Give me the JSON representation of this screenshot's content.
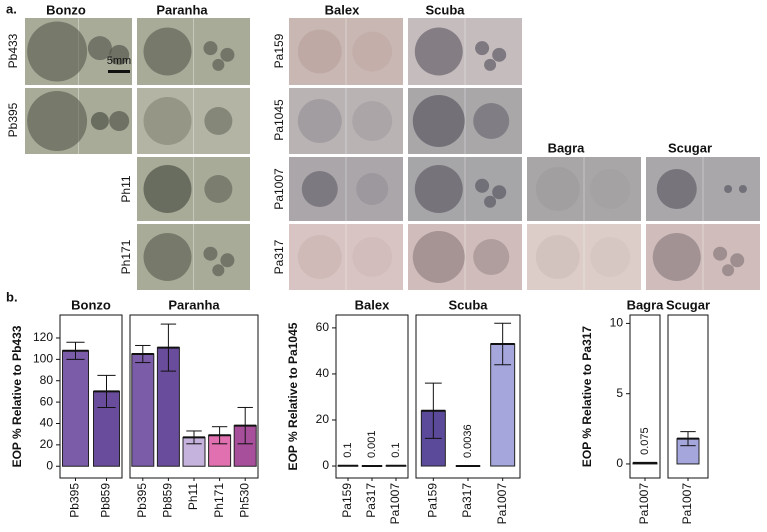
{
  "panel_a": {
    "label": "a.",
    "scale_bar": "5mm",
    "column_titles": [
      "Bonzo",
      "Paranha",
      "Balex",
      "Scuba",
      "Bagra",
      "Scugar"
    ],
    "row_labels": [
      "Pb433",
      "Pb395",
      "Ph11",
      "Ph171",
      "Pa159",
      "Pa1045",
      "Pa1007",
      "Pa317"
    ]
  },
  "panel_b_label": "b.",
  "chart_data": [
    {
      "type": "bar",
      "title": "Bonzo",
      "y_label": "EOP % Relative to Pb433",
      "categories": [
        "Pb395",
        "Pb859"
      ],
      "values": [
        108,
        70
      ],
      "errors": [
        8,
        15
      ],
      "colors": [
        "#7a5ca8",
        "#6a4c9c"
      ],
      "ylim": [
        -11,
        141.5
      ],
      "yticks": [
        0,
        20,
        40,
        60,
        80,
        100,
        120
      ]
    },
    {
      "type": "bar",
      "title": "Paranha",
      "categories": [
        "Pb395",
        "Pb859",
        "Ph11",
        "Ph171",
        "Ph530"
      ],
      "values": [
        105,
        111,
        27,
        29,
        38
      ],
      "errors": [
        8,
        22,
        6,
        8,
        17
      ],
      "colors": [
        "#7a5ca8",
        "#6a4c9c",
        "#c6b3dd",
        "#e070b0",
        "#a84f9c"
      ],
      "ylim": [
        -11,
        141.5
      ]
    },
    {
      "type": "bar",
      "title": "Balex",
      "y_label": "EOP % Relative to Pa1045",
      "categories": [
        "Pa159",
        "Pa317",
        "Pa1007"
      ],
      "values": [
        0.1,
        0.001,
        0.1
      ],
      "errors": [
        null,
        null,
        null
      ],
      "value_labels": [
        "0.1",
        "0.001",
        "0.1"
      ],
      "colors": [
        "#5b4a9a",
        "#5b4a9a",
        "#a4a6dc"
      ],
      "ylim": [
        -5.2,
        65.6
      ],
      "yticks": [
        0,
        20,
        40,
        60
      ]
    },
    {
      "type": "bar",
      "title": "Scuba",
      "categories": [
        "Pa159",
        "Pa317",
        "Pa1007"
      ],
      "values": [
        24,
        0.0036,
        53
      ],
      "errors": [
        12,
        null,
        9
      ],
      "value_labels": [
        null,
        "0.0036",
        null
      ],
      "colors": [
        "#5b4a9a",
        "#5b4a9a",
        "#a4a6dc"
      ],
      "ylim": [
        -5.2,
        65.6
      ]
    },
    {
      "type": "bar",
      "title": "Bagra",
      "y_label": "EOP % Relative to Pa317",
      "categories": [
        "Pa1007"
      ],
      "values": [
        0.075
      ],
      "errors": [
        null
      ],
      "value_labels": [
        "0.075"
      ],
      "colors": [
        "#a4a6dc"
      ],
      "ylim": [
        -1.0,
        10.6
      ],
      "yticks": [
        0,
        5,
        10
      ]
    },
    {
      "type": "bar",
      "title": "Scugar",
      "categories": [
        "Pa1007"
      ],
      "values": [
        1.8
      ],
      "errors": [
        0.5
      ],
      "colors": [
        "#a4a6dc"
      ],
      "ylim": [
        -1.0,
        10.6
      ]
    }
  ]
}
